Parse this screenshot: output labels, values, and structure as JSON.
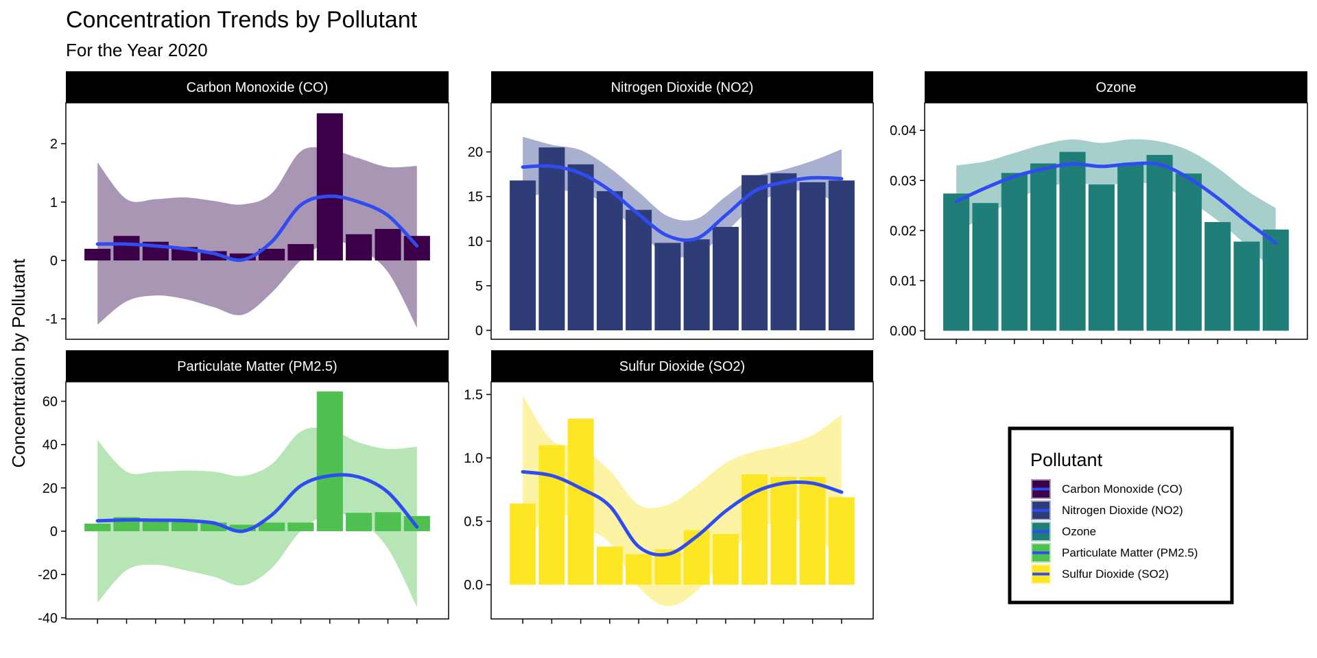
{
  "title": "Concentration Trends by Pollutant",
  "subtitle": "For the Year 2020",
  "ylabel": "Concentration by Pollutant",
  "legend": {
    "title": "Pollutant"
  },
  "trend_color": "#2f4bf2",
  "chart_data": [
    {
      "type": "bar",
      "name": "Carbon Monoxide (CO)",
      "color": "#3b0047",
      "band_color": "#a996b4",
      "months": 12,
      "values": [
        0.2,
        0.42,
        0.32,
        0.23,
        0.16,
        0.12,
        0.2,
        0.28,
        2.52,
        0.45,
        0.54,
        0.42
      ],
      "trend": [
        0.28,
        0.28,
        0.25,
        0.2,
        0.12,
        0.01,
        0.32,
        0.95,
        1.1,
        1.0,
        0.77,
        0.25
      ],
      "band_upper": [
        1.68,
        1.05,
        1.05,
        1.08,
        1.02,
        0.96,
        1.15,
        1.87,
        1.9,
        1.75,
        1.6,
        1.62
      ],
      "band_lower": [
        -1.1,
        -0.7,
        -0.6,
        -0.66,
        -0.8,
        -0.93,
        -0.55,
        0.0,
        0.32,
        0.2,
        -0.2,
        -1.15
      ],
      "ylim": [
        -1.35,
        2.7
      ],
      "yticks": [
        -1,
        0,
        1,
        2
      ],
      "ytick_labels": [
        "-1",
        "0",
        "1",
        "2"
      ]
    },
    {
      "type": "bar",
      "name": "Nitrogen Dioxide (NO2)",
      "color": "#2e3d78",
      "band_color": "#a9b0cf",
      "months": 12,
      "values": [
        16.8,
        20.5,
        18.6,
        15.6,
        13.5,
        9.8,
        10.2,
        11.6,
        17.4,
        17.6,
        16.6,
        16.8
      ],
      "trend": [
        18.3,
        18.4,
        17.6,
        15.7,
        13.0,
        10.6,
        10.3,
        12.9,
        15.6,
        16.6,
        17.1,
        17.0
      ],
      "band_upper": [
        21.7,
        20.8,
        20.2,
        18.2,
        15.5,
        12.8,
        12.5,
        15.0,
        17.2,
        18.0,
        19.0,
        20.3
      ],
      "band_lower": [
        14.8,
        15.5,
        15.5,
        13.8,
        11.0,
        8.5,
        8.5,
        11.0,
        14.0,
        15.5,
        15.5,
        14.0
      ],
      "ylim": [
        -1.0,
        25.5
      ],
      "yticks": [
        0,
        5,
        10,
        15,
        20
      ],
      "ytick_labels": [
        "0",
        "5",
        "10",
        "15",
        "20"
      ]
    },
    {
      "type": "bar",
      "name": "Ozone",
      "color": "#1f7f78",
      "band_color": "#a6cfcb",
      "months": 12,
      "values": [
        0.0274,
        0.0255,
        0.0315,
        0.0334,
        0.0357,
        0.0292,
        0.0334,
        0.0351,
        0.0314,
        0.0217,
        0.0178,
        0.0202
      ],
      "trend": [
        0.0258,
        0.0285,
        0.0308,
        0.0323,
        0.0333,
        0.0328,
        0.0333,
        0.0332,
        0.0305,
        0.0265,
        0.0218,
        0.0175
      ],
      "band_upper": [
        0.033,
        0.0338,
        0.0355,
        0.0372,
        0.0382,
        0.0375,
        0.0382,
        0.0378,
        0.036,
        0.0325,
        0.028,
        0.0245
      ],
      "band_lower": [
        0.0195,
        0.023,
        0.026,
        0.0285,
        0.0295,
        0.029,
        0.0295,
        0.029,
        0.026,
        0.022,
        0.017,
        0.0115
      ],
      "ylim": [
        -0.0017,
        0.0455
      ],
      "yticks": [
        0.0,
        0.01,
        0.02,
        0.03,
        0.04
      ],
      "ytick_labels": [
        "0.00",
        "0.01",
        "0.02",
        "0.03",
        "0.04"
      ]
    },
    {
      "type": "bar",
      "name": "Particulate Matter (PM2.5)",
      "color": "#4fc150",
      "band_color": "#b8e5b6",
      "months": 12,
      "values": [
        3.5,
        6.5,
        5.5,
        5.0,
        4.0,
        3.0,
        4.0,
        4.0,
        64.5,
        8.5,
        8.8,
        7.0
      ],
      "trend": [
        4.8,
        5.2,
        5.1,
        4.9,
        3.8,
        0.0,
        7.5,
        21.0,
        25.6,
        25.0,
        18.0,
        2.0
      ],
      "band_upper": [
        42.0,
        27.5,
        27.5,
        28.0,
        27.5,
        25.5,
        31.0,
        46.0,
        47.0,
        41.0,
        38.0,
        39.0
      ],
      "band_lower": [
        -33.0,
        -18.0,
        -15.5,
        -18.0,
        -21.0,
        -25.0,
        -17.0,
        0.0,
        8.0,
        5.0,
        -8.0,
        -35.0
      ],
      "ylim": [
        -40.5,
        69.0
      ],
      "yticks": [
        -40,
        -20,
        0,
        20,
        40,
        60
      ],
      "ytick_labels": [
        "-40",
        "-20",
        "0",
        "20",
        "40",
        "60"
      ]
    },
    {
      "type": "bar",
      "name": "Sulfur Dioxide (SO2)",
      "color": "#fde725",
      "band_color": "#fdf3a5",
      "months": 12,
      "values": [
        0.64,
        1.1,
        1.31,
        0.3,
        0.24,
        0.28,
        0.43,
        0.4,
        0.87,
        0.85,
        0.85,
        0.69
      ],
      "trend": [
        0.89,
        0.86,
        0.76,
        0.62,
        0.3,
        0.24,
        0.38,
        0.58,
        0.73,
        0.8,
        0.8,
        0.73
      ],
      "band_upper": [
        1.49,
        1.14,
        1.08,
        0.9,
        0.63,
        0.63,
        0.78,
        0.96,
        1.05,
        1.1,
        1.18,
        1.34
      ],
      "band_lower": [
        0.27,
        0.58,
        0.46,
        0.33,
        -0.02,
        -0.17,
        -0.05,
        0.22,
        0.43,
        0.5,
        0.46,
        0.11
      ],
      "ylim": [
        -0.27,
        1.6
      ],
      "yticks": [
        0.0,
        0.5,
        1.0,
        1.5
      ],
      "ytick_labels": [
        "0.0",
        "0.5",
        "1.0",
        "1.5"
      ]
    }
  ]
}
